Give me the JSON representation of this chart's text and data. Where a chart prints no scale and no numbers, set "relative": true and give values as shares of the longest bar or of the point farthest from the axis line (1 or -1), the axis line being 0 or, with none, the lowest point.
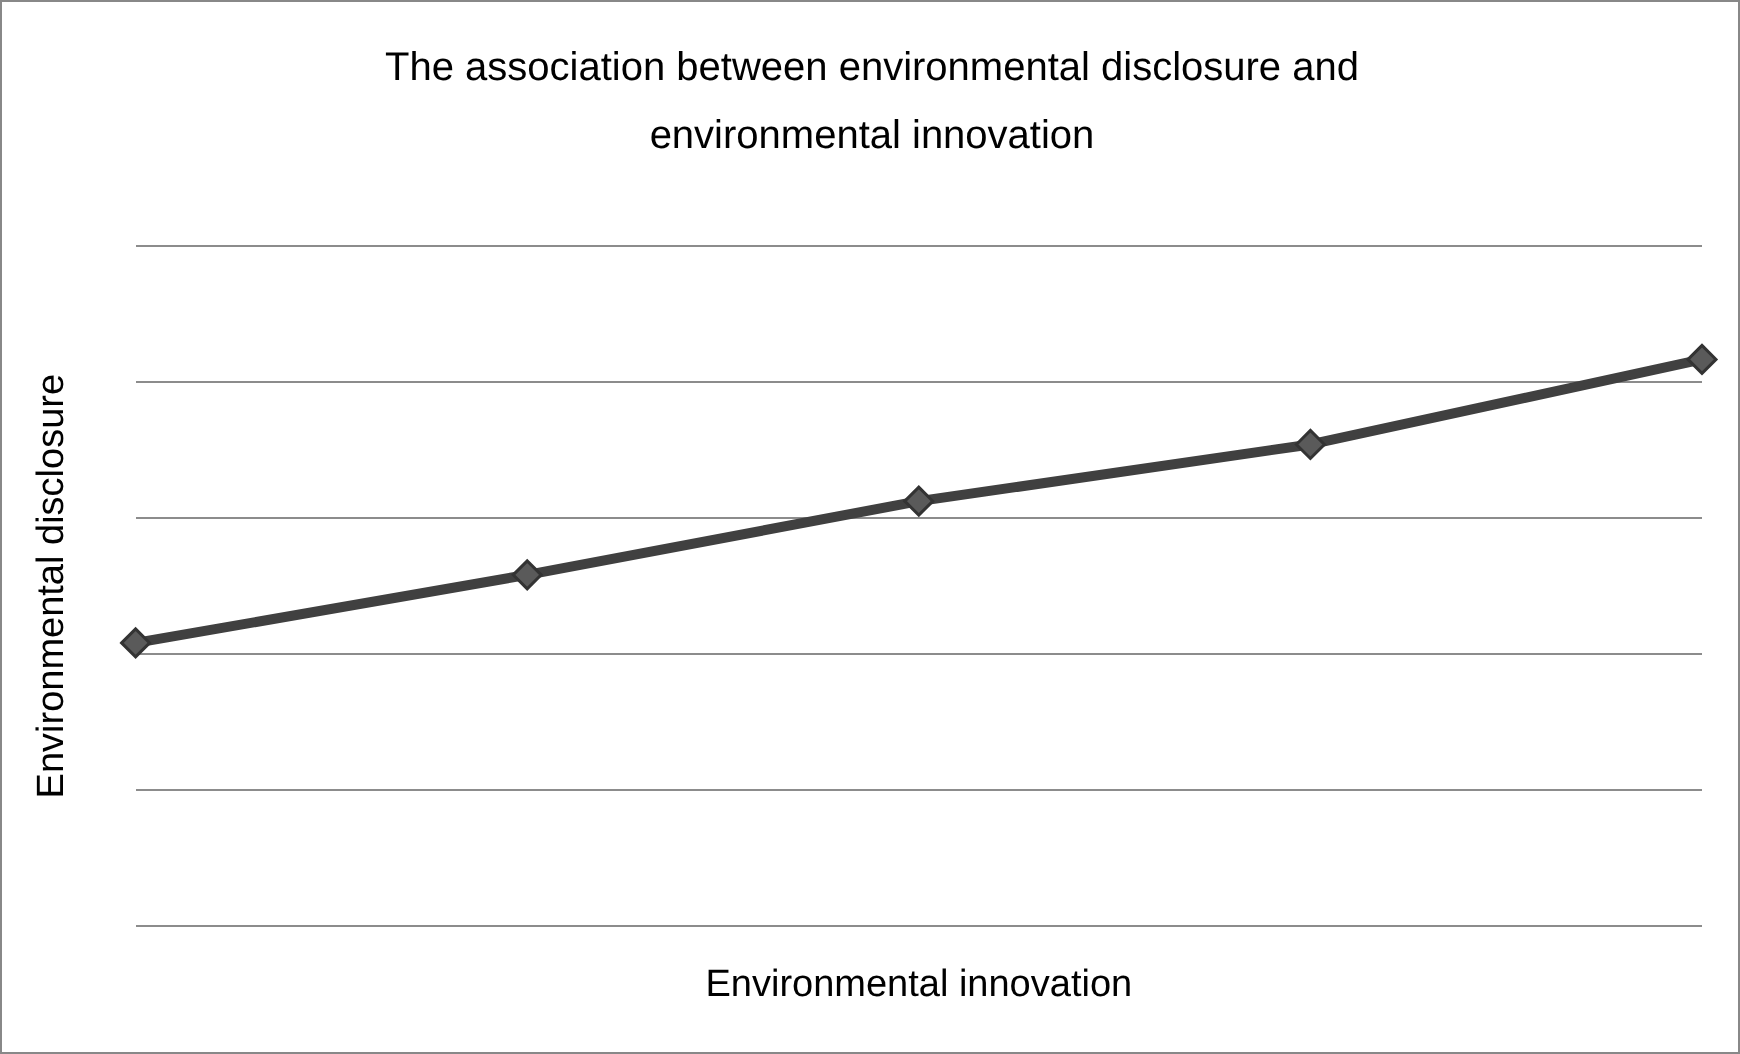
{
  "chart_data": {
    "type": "line",
    "title": "The association between environmental disclosure and environmental innovation",
    "xlabel": "Environmental innovation",
    "ylabel": "Environmental disclosure",
    "categories": [
      null,
      null,
      null,
      null,
      null
    ],
    "relative": true,
    "series": [
      {
        "color": "#404040",
        "values": [
          0.5,
          0.62,
          0.75,
          0.85,
          1
        ]
      }
    ],
    "grid": "y",
    "legend": false,
    "marker": "diamond",
    "line_style": "solid"
  }
}
